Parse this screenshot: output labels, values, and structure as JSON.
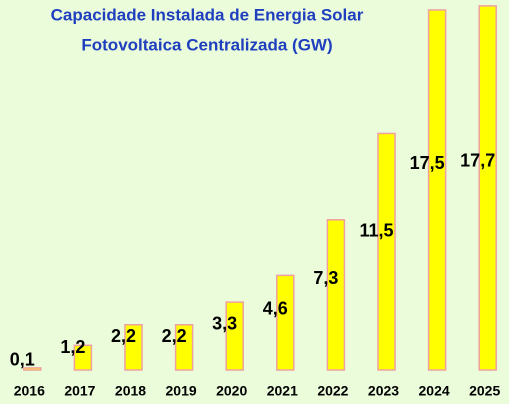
{
  "chart_data": {
    "type": "bar",
    "title": [
      "Capacidade Instalada de Energia Solar",
      "Fotovoltaica Centralizada (GW)"
    ],
    "categories": [
      "2016",
      "2017",
      "2018",
      "2019",
      "2020",
      "2021",
      "2022",
      "2023",
      "2024",
      "2025"
    ],
    "values": [
      0.1,
      1.2,
      2.2,
      2.2,
      3.3,
      4.6,
      7.3,
      11.5,
      17.5,
      17.7
    ],
    "value_labels": [
      "0,1",
      "1,2",
      "2,2",
      "2,2",
      "3,3",
      "4,6",
      "7,3",
      "11,5",
      "17,5",
      "17,7"
    ],
    "color": "#ffff00",
    "edge_color": "#f0a0a0",
    "background": "#eafcda",
    "ylim": [
      0,
      17.5
    ]
  }
}
